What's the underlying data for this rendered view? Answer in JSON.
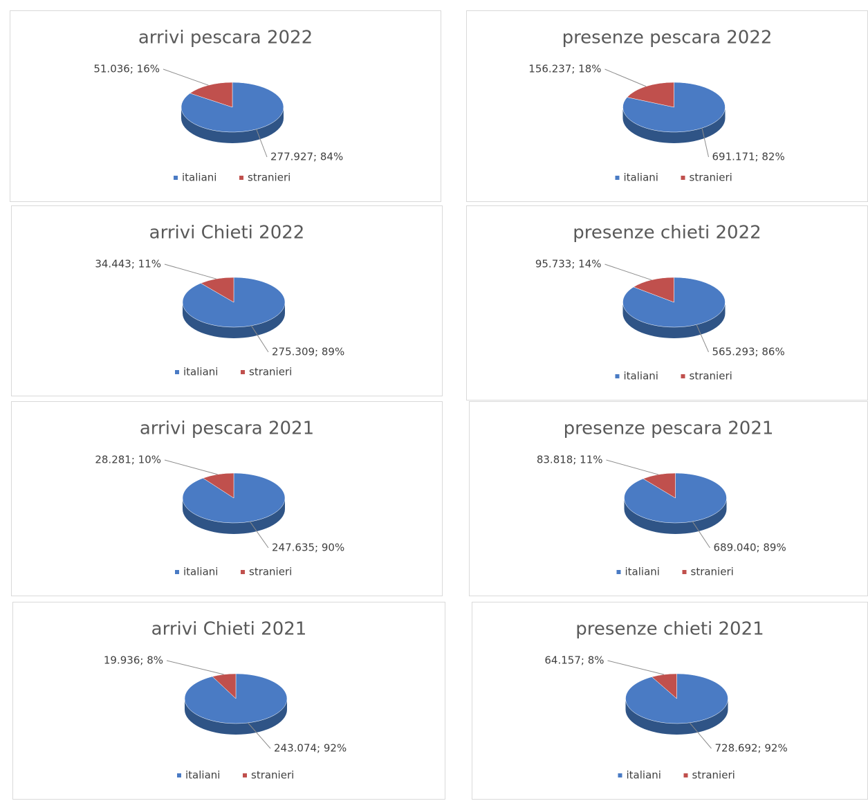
{
  "chart_data": [
    {
      "type": "pie",
      "title": "arrivi pescara 2022",
      "categories": [
        "italiani",
        "stranieri"
      ],
      "values": [
        277927,
        51036
      ],
      "value_labels": [
        "277.927; 84%",
        "51.036; 16%"
      ],
      "colors": [
        "#4a7bc4",
        "#c0504d"
      ]
    },
    {
      "type": "pie",
      "title": "presenze pescara 2022",
      "categories": [
        "italiani",
        "stranieri"
      ],
      "values": [
        691171,
        156237
      ],
      "value_labels": [
        "691.171; 82%",
        "156.237; 18%"
      ],
      "colors": [
        "#4a7bc4",
        "#c0504d"
      ]
    },
    {
      "type": "pie",
      "title": "arrivi Chieti 2022",
      "categories": [
        "italiani",
        "stranieri"
      ],
      "values": [
        275309,
        34443
      ],
      "value_labels": [
        "275.309; 89%",
        "34.443; 11%"
      ],
      "colors": [
        "#4a7bc4",
        "#c0504d"
      ]
    },
    {
      "type": "pie",
      "title": "presenze chieti 2022",
      "categories": [
        "italiani",
        "stranieri"
      ],
      "values": [
        565293,
        95733
      ],
      "value_labels": [
        "565.293; 86%",
        "95.733; 14%"
      ],
      "colors": [
        "#4a7bc4",
        "#c0504d"
      ]
    },
    {
      "type": "pie",
      "title": "arrivi pescara 2021",
      "categories": [
        "italiani",
        "stranieri"
      ],
      "values": [
        247635,
        28281
      ],
      "value_labels": [
        "247.635; 90%",
        "28.281; 10%"
      ],
      "colors": [
        "#4a7bc4",
        "#c0504d"
      ]
    },
    {
      "type": "pie",
      "title": "presenze pescara 2021",
      "categories": [
        "italiani",
        "stranieri"
      ],
      "values": [
        689040,
        83818
      ],
      "value_labels": [
        "689.040; 89%",
        "83.818; 11%"
      ],
      "colors": [
        "#4a7bc4",
        "#c0504d"
      ]
    },
    {
      "type": "pie",
      "title": "arrivi Chieti 2021",
      "categories": [
        "italiani",
        "stranieri"
      ],
      "values": [
        243074,
        19936
      ],
      "value_labels": [
        "243.074; 92%",
        "19.936; 8%"
      ],
      "colors": [
        "#4a7bc4",
        "#c0504d"
      ]
    },
    {
      "type": "pie",
      "title": "presenze chieti 2021",
      "categories": [
        "italiani",
        "stranieri"
      ],
      "values": [
        728692,
        64157
      ],
      "value_labels": [
        "728.692; 92%",
        "64.157; 8%"
      ],
      "colors": [
        "#4a7bc4",
        "#c0504d"
      ]
    }
  ]
}
